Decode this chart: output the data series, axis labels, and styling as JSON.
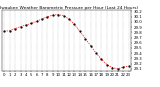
{
  "title": "Milwaukee Weather Barometric Pressure per Hour (Last 24 Hours)",
  "hours": [
    0,
    1,
    2,
    3,
    4,
    5,
    6,
    7,
    8,
    9,
    10,
    11,
    12,
    13,
    14,
    15,
    16,
    17,
    18,
    19,
    20,
    21,
    22,
    23
  ],
  "pressure": [
    29.82,
    29.83,
    29.87,
    29.91,
    29.94,
    29.97,
    30.01,
    30.06,
    30.1,
    30.13,
    30.14,
    30.12,
    30.05,
    29.95,
    29.82,
    29.68,
    29.54,
    29.4,
    29.28,
    29.18,
    29.12,
    29.1,
    29.13,
    29.15
  ],
  "line_color": "#ff0000",
  "marker_color": "#000000",
  "bg_color": "#ffffff",
  "grid_color": "#888888",
  "ylim_min": 29.05,
  "ylim_max": 30.22,
  "ytick_values": [
    29.1,
    29.2,
    29.3,
    29.4,
    29.5,
    29.6,
    29.7,
    29.8,
    29.9,
    30.0,
    30.1,
    30.2
  ],
  "xtick_labels": [
    "0",
    "1",
    "2",
    "3",
    "4",
    "5",
    "6",
    "7",
    "8",
    "9",
    "10",
    "11",
    "12",
    "13",
    "14",
    "15",
    "16",
    "17",
    "18",
    "19",
    "20",
    "21",
    "22",
    "23"
  ],
  "title_fontsize": 3.2,
  "tick_fontsize": 2.8,
  "line_width": 0.5,
  "marker_size": 1.2
}
